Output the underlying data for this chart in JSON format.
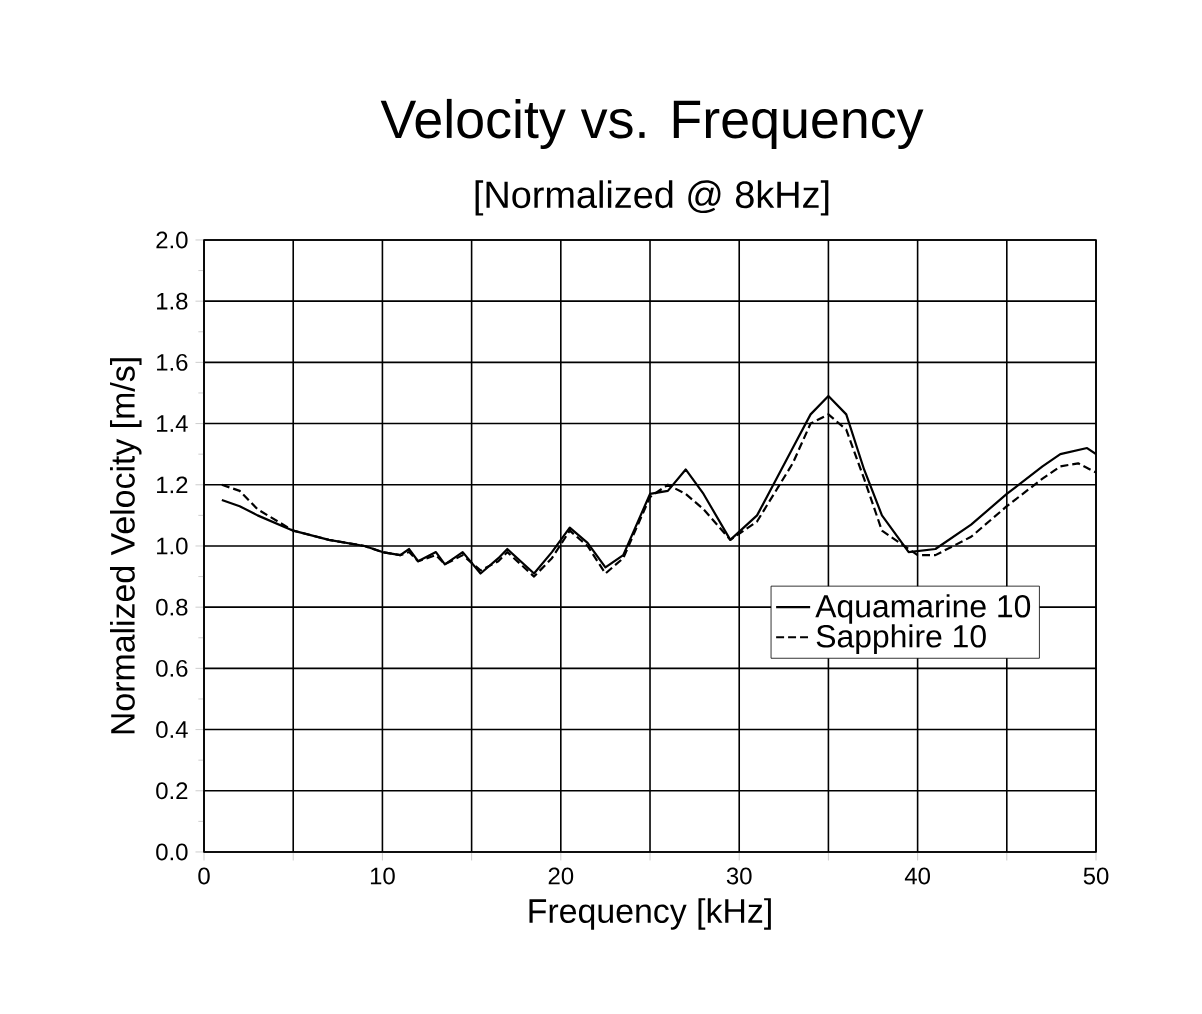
{
  "chart_data": {
    "type": "line",
    "title": "Velocity vs. Frequency",
    "subtitle": "[Normalized @ 8kHz]",
    "xlabel": "Frequency [kHz]",
    "ylabel": "Normalized Velocity [m/s]",
    "xlim": [
      0,
      50
    ],
    "ylim": [
      0.0,
      2.0
    ],
    "xticks": [
      0,
      {
        "value": 5,
        "label": null
      },
      10,
      {
        "value": 15,
        "label": null
      },
      20,
      {
        "value": 25,
        "label": null
      },
      30,
      {
        "value": 35,
        "label": null
      },
      40,
      {
        "value": 45,
        "label": null
      },
      50
    ],
    "yticks": [
      {
        "value": 0,
        "label": "0.0"
      },
      {
        "value": 0.2,
        "label": "0.2"
      },
      {
        "value": 0.4,
        "label": "0.4"
      },
      {
        "value": 0.6,
        "label": "0.6"
      },
      {
        "value": 0.8,
        "label": "0.8"
      },
      {
        "value": 1,
        "label": "1.0"
      },
      {
        "value": 1.2,
        "label": "1.2"
      },
      {
        "value": 1.4,
        "label": "1.4"
      },
      {
        "value": 1.6,
        "label": "1.6"
      },
      {
        "value": 1.8,
        "label": "1.8"
      },
      {
        "value": 2,
        "label": "2.0"
      }
    ],
    "grid": true,
    "legend": "right",
    "series": [
      {
        "name": "Aquamarine 10",
        "color": "#000000",
        "line_style": "solid",
        "x": [
          1,
          2,
          3,
          5,
          7,
          9,
          10,
          11,
          11.5,
          12,
          13,
          13.5,
          14.5,
          15.5,
          16.5,
          17,
          18.5,
          19.5,
          20.5,
          21.5,
          22.5,
          23.5,
          25,
          26,
          27,
          28,
          29.5,
          31,
          33,
          34,
          35,
          36,
          37,
          38,
          39.5,
          41,
          43,
          45,
          47,
          48,
          49.5,
          50
        ],
        "values": [
          1.15,
          1.13,
          1.1,
          1.05,
          1.02,
          1.0,
          0.98,
          0.97,
          0.99,
          0.95,
          0.98,
          0.94,
          0.98,
          0.91,
          0.96,
          0.99,
          0.91,
          0.98,
          1.06,
          1.01,
          0.93,
          0.97,
          1.17,
          1.18,
          1.25,
          1.17,
          1.02,
          1.1,
          1.32,
          1.43,
          1.49,
          1.43,
          1.25,
          1.1,
          0.98,
          0.99,
          1.07,
          1.17,
          1.26,
          1.3,
          1.32,
          1.3
        ]
      },
      {
        "name": "Sapphire 10",
        "color": "#000000",
        "line_style": "dashed",
        "x": [
          1,
          2,
          3,
          5,
          7,
          9,
          10,
          11,
          11.5,
          12,
          13,
          13.5,
          14.5,
          15.5,
          16.5,
          17,
          18.5,
          19.5,
          20.5,
          21.5,
          22.5,
          23.5,
          25,
          26,
          27,
          28,
          29.5,
          31,
          33,
          34,
          35,
          36,
          37,
          38,
          40,
          41,
          43,
          45,
          47,
          48,
          49,
          50
        ],
        "values": [
          1.2,
          1.18,
          1.12,
          1.05,
          1.02,
          1.0,
          0.98,
          0.97,
          0.98,
          0.95,
          0.97,
          0.94,
          0.97,
          0.92,
          0.95,
          0.98,
          0.9,
          0.96,
          1.05,
          1.0,
          0.91,
          0.96,
          1.16,
          1.2,
          1.17,
          1.12,
          1.02,
          1.08,
          1.27,
          1.4,
          1.43,
          1.38,
          1.22,
          1.05,
          0.97,
          0.97,
          1.03,
          1.13,
          1.22,
          1.26,
          1.27,
          1.24
        ]
      }
    ]
  }
}
